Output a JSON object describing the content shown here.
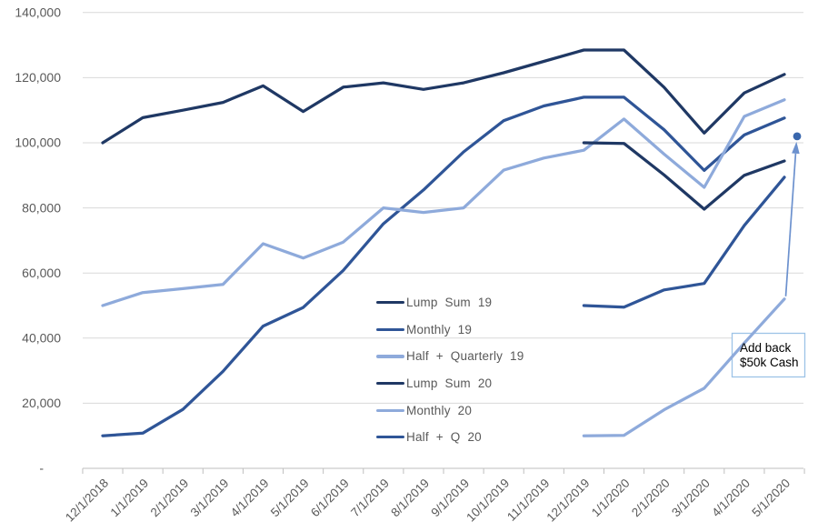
{
  "chart_data": {
    "type": "line",
    "title": "",
    "xlabel": "",
    "ylabel": "",
    "grid": true,
    "legend_position": "center-inside",
    "categories": [
      "12/1/2018",
      "1/1/2019",
      "2/1/2019",
      "3/1/2019",
      "4/1/2019",
      "5/1/2019",
      "6/1/2019",
      "7/1/2019",
      "8/1/2019",
      "9/1/2019",
      "10/1/2019",
      "11/1/2019",
      "12/1/2019",
      "1/1/2020",
      "2/1/2020",
      "3/1/2020",
      "4/1/2020",
      "5/1/2020"
    ],
    "y_axis": {
      "min": 0,
      "max": 140000,
      "step": 20000,
      "tick_labels": [
        "-",
        "20,000",
        "40,000",
        "60,000",
        "80,000",
        "100,000",
        "120,000",
        "140,000"
      ]
    },
    "series": [
      {
        "name": "Lump Sum 19",
        "color": "#1f3864",
        "values": [
          100000,
          107700,
          110000,
          112400,
          117500,
          109600,
          117100,
          118400,
          116400,
          118400,
          121500,
          125000,
          128500,
          128500,
          117000,
          103000,
          115300,
          121000
        ]
      },
      {
        "name": "Monthly 19",
        "color": "#2f5597",
        "values": [
          10000,
          10800,
          18100,
          29800,
          43700,
          49400,
          60800,
          75100,
          85500,
          97200,
          106800,
          111300,
          114000,
          114000,
          104000,
          91500,
          102400,
          107600
        ]
      },
      {
        "name": "Half + Quarterly 19",
        "color": "#8eaadb",
        "values": [
          50000,
          54000,
          55200,
          56500,
          69000,
          64600,
          69500,
          80000,
          78600,
          80000,
          91600,
          95300,
          97700,
          107300,
          96500,
          86300,
          108100,
          113200
        ]
      },
      {
        "name": "Lump Sum 20",
        "color": "#1f3864",
        "values": [
          null,
          null,
          null,
          null,
          null,
          null,
          null,
          null,
          null,
          null,
          null,
          null,
          100000,
          99800,
          90100,
          79600,
          90000,
          94400
        ]
      },
      {
        "name": "Monthly 20",
        "color": "#8eaadb",
        "values": [
          null,
          null,
          null,
          null,
          null,
          null,
          null,
          null,
          null,
          null,
          null,
          null,
          10000,
          10100,
          18000,
          24600,
          38500,
          52000
        ]
      },
      {
        "name": "Half + Q 20",
        "color": "#2f5597",
        "values": [
          null,
          null,
          null,
          null,
          null,
          null,
          null,
          null,
          null,
          null,
          null,
          null,
          50000,
          49500,
          54800,
          56800,
          74600,
          89400
        ]
      }
    ],
    "annotation": {
      "box_text": [
        "Add back",
        "$50k Cash"
      ],
      "dot_value": 102000,
      "arrow_from_value": 52000,
      "dot_color": "#3a67ad",
      "arrow_color": "#6c91ce",
      "box_border_color": "#9dc3e6"
    },
    "style_colors": {
      "gridline": "#d9d9d9",
      "axis_line": "#bfbfbf",
      "tick_label": "#595959"
    }
  }
}
